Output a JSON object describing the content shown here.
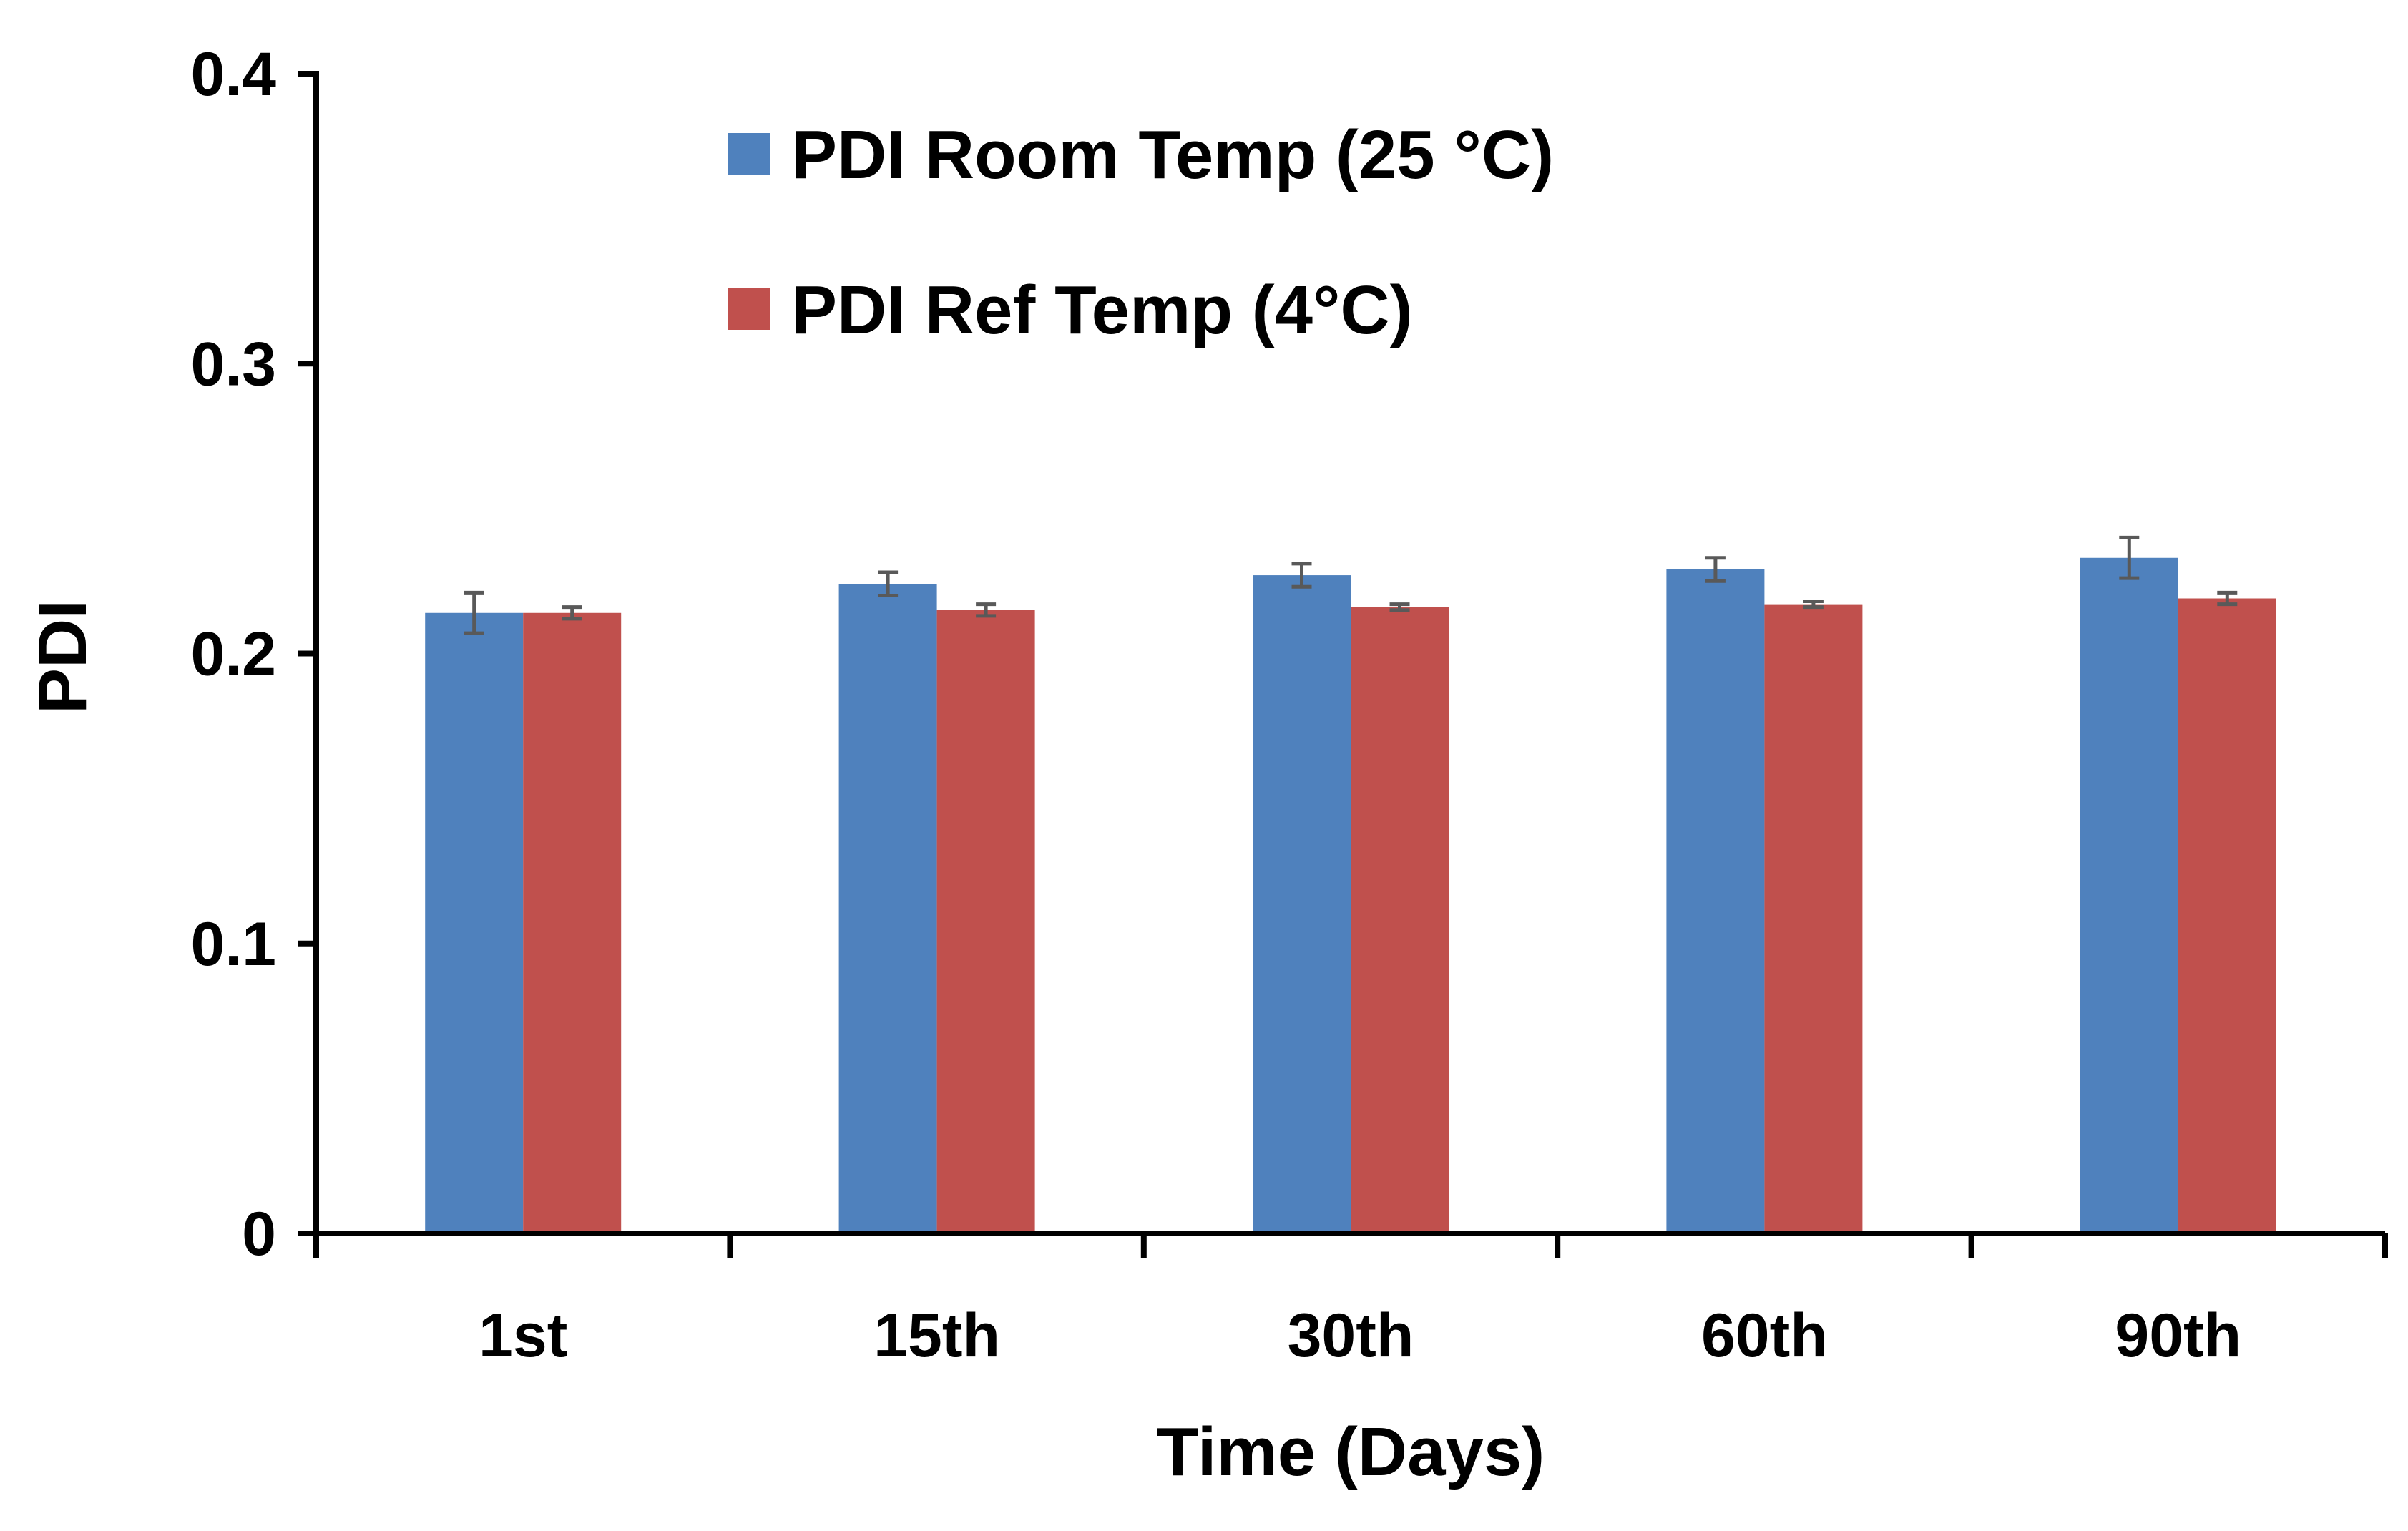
{
  "chart_data": {
    "type": "bar",
    "title": "",
    "xlabel": "Time (Days)",
    "ylabel": "PDI",
    "ylim": [
      0,
      0.4
    ],
    "yticks": [
      "0",
      "0.1",
      "0.2",
      "0.3",
      "0.4"
    ],
    "categories": [
      "1st",
      "15th",
      "30th",
      "60th",
      "90th"
    ],
    "legend_position": "top-center",
    "grid": false,
    "series": [
      {
        "name": "PDI Room Temp (25 °C)",
        "color": "#4F81BD",
        "values": [
          0.214,
          0.224,
          0.227,
          0.229,
          0.233
        ],
        "errors": [
          0.007,
          0.004,
          0.004,
          0.004,
          0.007
        ]
      },
      {
        "name": "PDI Ref Temp (4°C)",
        "color": "#C0504D",
        "values": [
          0.214,
          0.215,
          0.216,
          0.217,
          0.219
        ],
        "errors": [
          0.002,
          0.002,
          0.001,
          0.001,
          0.002
        ]
      }
    ]
  }
}
